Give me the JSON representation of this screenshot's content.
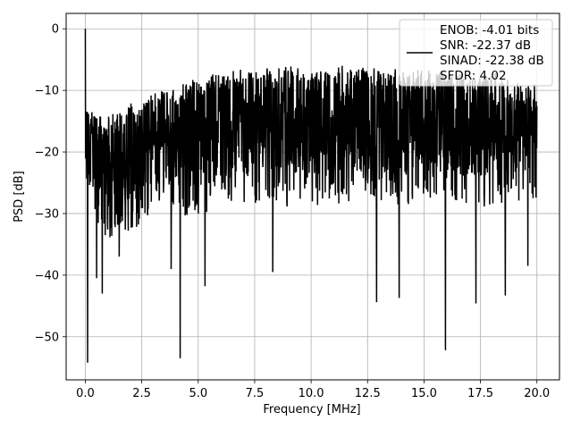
{
  "chart_data": {
    "type": "line",
    "title": "",
    "xlabel": "Frequency [MHz]",
    "ylabel": "PSD [dB]",
    "xlim": [
      -0.85,
      21.0
    ],
    "ylim": [
      -57.0,
      2.5
    ],
    "x_ticks": [
      0.0,
      2.5,
      5.0,
      7.5,
      10.0,
      12.5,
      15.0,
      17.5,
      20.0
    ],
    "x_tick_labels": [
      "0.0",
      "2.5",
      "5.0",
      "7.5",
      "10.0",
      "12.5",
      "15.0",
      "17.5",
      "20.0"
    ],
    "y_ticks": [
      0,
      -10,
      -20,
      -30,
      -40,
      -50
    ],
    "y_tick_labels": [
      "0",
      "−10",
      "−20",
      "−30",
      "−40",
      "−50"
    ],
    "grid": true,
    "legend_position": "upper-right",
    "legend_entries": [
      "ENOB: -4.01 bits",
      "SNR: -22.37 dB",
      "SINAD: -22.38 dB",
      "SFDR: 4.02"
    ],
    "series": [
      {
        "color": "#000000",
        "x_range": [
          0.0,
          20.0
        ],
        "approx_upper_envelope_db": [
          -13,
          -14,
          -12,
          -10,
          -9,
          -8,
          -7,
          -6.5,
          -6,
          -6,
          -7,
          -6,
          -6,
          -6.5,
          -6,
          -6.5,
          -6.5,
          -7,
          -7,
          -8,
          -9
        ],
        "approx_lower_envelope_db": [
          -30,
          -34,
          -33,
          -30,
          -30,
          -31,
          -29,
          -29,
          -28,
          -29,
          -29,
          -29,
          -28,
          -28,
          -29,
          -28,
          -28,
          -29,
          -29,
          -28,
          -28
        ],
        "peaks": [
          {
            "x": 0.0,
            "y": 0.0
          }
        ],
        "notable_dips": [
          {
            "x": 0.1,
            "y": -54.2
          },
          {
            "x": 0.5,
            "y": -40.5
          },
          {
            "x": 0.75,
            "y": -43.0
          },
          {
            "x": 1.5,
            "y": -37.0
          },
          {
            "x": 3.8,
            "y": -39.0
          },
          {
            "x": 4.2,
            "y": -53.5
          },
          {
            "x": 5.3,
            "y": -41.8
          },
          {
            "x": 8.3,
            "y": -39.5
          },
          {
            "x": 12.9,
            "y": -44.4
          },
          {
            "x": 13.9,
            "y": -43.7
          },
          {
            "x": 15.95,
            "y": -52.2
          },
          {
            "x": 17.3,
            "y": -44.6
          },
          {
            "x": 18.6,
            "y": -43.3
          },
          {
            "x": 19.6,
            "y": -38.5
          }
        ],
        "points": 2000
      }
    ]
  }
}
